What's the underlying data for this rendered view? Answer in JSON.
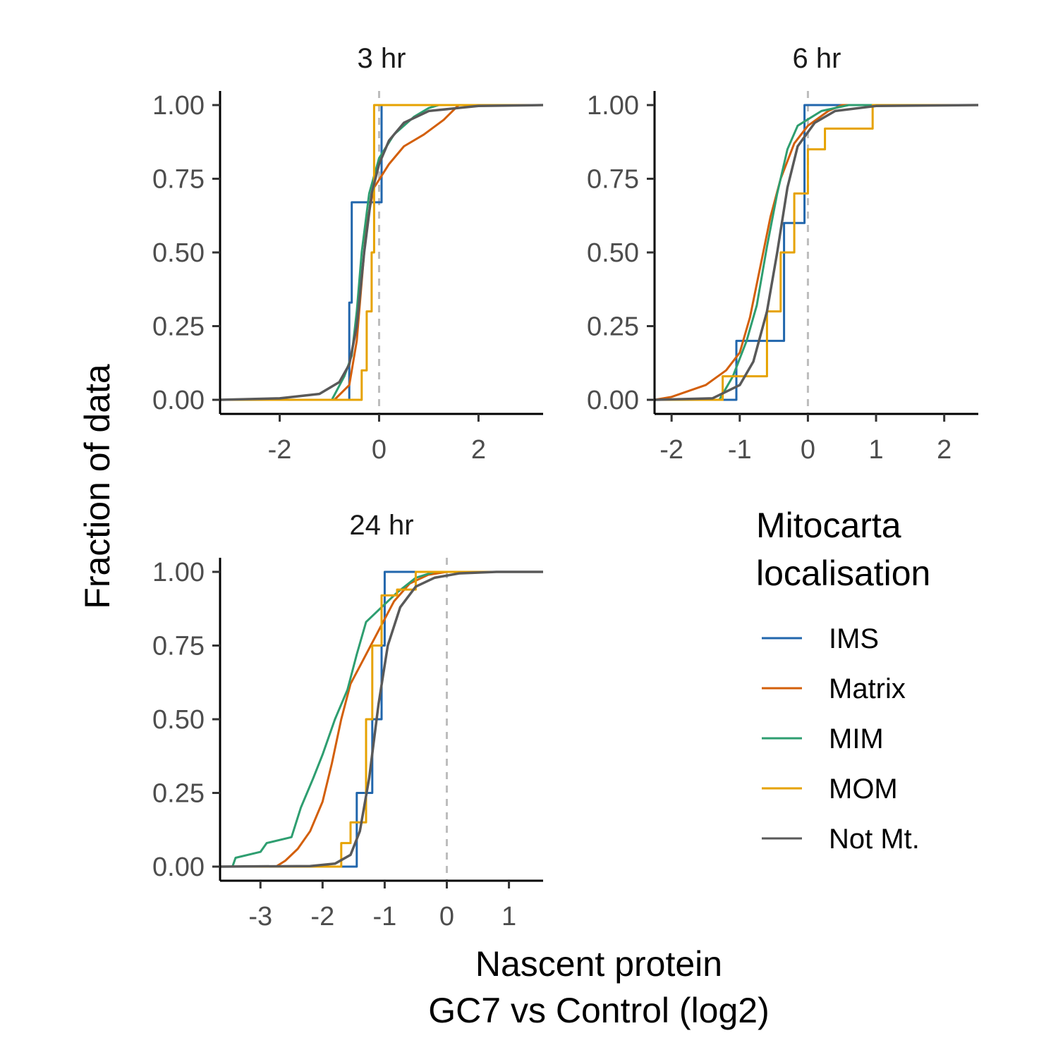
{
  "chart_data": {
    "type": "line",
    "ylabel": "Fraction of data",
    "xlabel_lines": [
      "Nascent protein",
      "GC7 vs Control (log2)"
    ],
    "legend": {
      "title_lines": [
        "Mitocarta",
        "localisation"
      ],
      "placement": "right",
      "entries": [
        {
          "name": "IMS",
          "color": "#2166ac"
        },
        {
          "name": "Matrix",
          "color": "#d35f0a"
        },
        {
          "name": "MIM",
          "color": "#2e9e70"
        },
        {
          "name": "MOM",
          "color": "#e6a200"
        },
        {
          "name": "Not Mt.",
          "color": "#595959"
        }
      ]
    },
    "reference_line_x": 0,
    "yticks": [
      "0.00",
      "0.25",
      "0.50",
      "0.75",
      "1.00"
    ],
    "ylim": [
      0,
      1
    ],
    "panels": [
      {
        "title": "3 hr",
        "xlim": [
          -3.2,
          3.3
        ],
        "xticks": [
          {
            "v": -2,
            "label": "-2"
          },
          {
            "v": 0,
            "label": "0"
          },
          {
            "v": 2,
            "label": "2"
          }
        ],
        "series": [
          {
            "name": "IMS",
            "type": "step",
            "points": [
              [
                -3.2,
                0
              ],
              [
                -0.6,
                0
              ],
              [
                -0.6,
                0.33
              ],
              [
                -0.55,
                0.33
              ],
              [
                -0.55,
                0.67
              ],
              [
                0.05,
                0.67
              ],
              [
                0.05,
                1
              ],
              [
                3.3,
                1
              ]
            ]
          },
          {
            "name": "Matrix",
            "type": "ecdf",
            "points": [
              [
                -3.2,
                0
              ],
              [
                -0.9,
                0
              ],
              [
                -0.6,
                0.05
              ],
              [
                -0.45,
                0.2
              ],
              [
                -0.35,
                0.4
              ],
              [
                -0.25,
                0.6
              ],
              [
                -0.1,
                0.72
              ],
              [
                0.2,
                0.8
              ],
              [
                0.5,
                0.86
              ],
              [
                0.9,
                0.9
              ],
              [
                1.3,
                0.95
              ],
              [
                1.6,
                1.0
              ],
              [
                3.3,
                1
              ]
            ]
          },
          {
            "name": "MIM",
            "type": "ecdf",
            "points": [
              [
                -3.2,
                0
              ],
              [
                -0.95,
                0
              ],
              [
                -0.7,
                0.08
              ],
              [
                -0.55,
                0.15
              ],
              [
                -0.45,
                0.3
              ],
              [
                -0.35,
                0.5
              ],
              [
                -0.2,
                0.7
              ],
              [
                0.0,
                0.82
              ],
              [
                0.3,
                0.9
              ],
              [
                0.7,
                0.96
              ],
              [
                1.0,
                0.99
              ],
              [
                1.2,
                1.0
              ],
              [
                3.3,
                1
              ]
            ]
          },
          {
            "name": "MOM",
            "type": "step",
            "points": [
              [
                -3.2,
                0
              ],
              [
                -0.35,
                0
              ],
              [
                -0.35,
                0.1
              ],
              [
                -0.25,
                0.1
              ],
              [
                -0.25,
                0.3
              ],
              [
                -0.15,
                0.3
              ],
              [
                -0.15,
                0.5
              ],
              [
                -0.1,
                0.5
              ],
              [
                -0.1,
                1.0
              ],
              [
                3.3,
                1
              ]
            ]
          },
          {
            "name": "Not Mt.",
            "type": "ecdf",
            "points": [
              [
                -3.2,
                0
              ],
              [
                -2.0,
                0.005
              ],
              [
                -1.2,
                0.02
              ],
              [
                -0.8,
                0.06
              ],
              [
                -0.6,
                0.12
              ],
              [
                -0.45,
                0.25
              ],
              [
                -0.3,
                0.5
              ],
              [
                -0.15,
                0.7
              ],
              [
                0.0,
                0.8
              ],
              [
                0.2,
                0.88
              ],
              [
                0.5,
                0.94
              ],
              [
                1.0,
                0.98
              ],
              [
                2.0,
                0.997
              ],
              [
                3.3,
                1
              ]
            ]
          }
        ]
      },
      {
        "title": "6 hr",
        "xlim": [
          -2.25,
          2.5
        ],
        "xticks": [
          {
            "v": -2,
            "label": "-2"
          },
          {
            "v": -1,
            "label": "-1"
          },
          {
            "v": 0,
            "label": "0"
          },
          {
            "v": 1,
            "label": "1"
          },
          {
            "v": 2,
            "label": "2"
          }
        ],
        "series": [
          {
            "name": "IMS",
            "type": "step",
            "points": [
              [
                -2.25,
                0
              ],
              [
                -1.05,
                0
              ],
              [
                -1.05,
                0.2
              ],
              [
                -0.35,
                0.2
              ],
              [
                -0.35,
                0.6
              ],
              [
                -0.05,
                0.6
              ],
              [
                -0.05,
                1.0
              ],
              [
                2.5,
                1
              ]
            ]
          },
          {
            "name": "Matrix",
            "type": "ecdf",
            "points": [
              [
                -2.25,
                0
              ],
              [
                -2.0,
                0.01
              ],
              [
                -1.5,
                0.05
              ],
              [
                -1.2,
                0.1
              ],
              [
                -1.0,
                0.16
              ],
              [
                -0.85,
                0.28
              ],
              [
                -0.7,
                0.45
              ],
              [
                -0.55,
                0.62
              ],
              [
                -0.4,
                0.75
              ],
              [
                -0.2,
                0.87
              ],
              [
                0.0,
                0.93
              ],
              [
                0.3,
                0.98
              ],
              [
                0.5,
                1.0
              ],
              [
                2.5,
                1
              ]
            ]
          },
          {
            "name": "MIM",
            "type": "ecdf",
            "points": [
              [
                -2.25,
                0
              ],
              [
                -1.3,
                0
              ],
              [
                -1.1,
                0.08
              ],
              [
                -0.9,
                0.2
              ],
              [
                -0.75,
                0.32
              ],
              [
                -0.6,
                0.52
              ],
              [
                -0.45,
                0.7
              ],
              [
                -0.3,
                0.85
              ],
              [
                -0.15,
                0.93
              ],
              [
                0.2,
                0.98
              ],
              [
                0.6,
                1.0
              ],
              [
                2.5,
                1
              ]
            ]
          },
          {
            "name": "MOM",
            "type": "step",
            "points": [
              [
                -2.25,
                0
              ],
              [
                -1.25,
                0
              ],
              [
                -1.25,
                0.08
              ],
              [
                -0.6,
                0.08
              ],
              [
                -0.6,
                0.3
              ],
              [
                -0.4,
                0.3
              ],
              [
                -0.4,
                0.5
              ],
              [
                -0.2,
                0.5
              ],
              [
                -0.2,
                0.7
              ],
              [
                0.0,
                0.7
              ],
              [
                0.0,
                0.85
              ],
              [
                0.25,
                0.85
              ],
              [
                0.25,
                0.92
              ],
              [
                0.95,
                0.92
              ],
              [
                0.95,
                1.0
              ],
              [
                2.5,
                1
              ]
            ]
          },
          {
            "name": "Not Mt.",
            "type": "ecdf",
            "points": [
              [
                -2.25,
                0
              ],
              [
                -1.4,
                0.005
              ],
              [
                -1.0,
                0.05
              ],
              [
                -0.8,
                0.13
              ],
              [
                -0.6,
                0.3
              ],
              [
                -0.45,
                0.5
              ],
              [
                -0.3,
                0.72
              ],
              [
                -0.15,
                0.86
              ],
              [
                0.1,
                0.94
              ],
              [
                0.4,
                0.98
              ],
              [
                1.0,
                0.997
              ],
              [
                2.5,
                1
              ]
            ]
          }
        ]
      },
      {
        "title": "24 hr",
        "xlim": [
          -3.65,
          1.55
        ],
        "xticks": [
          {
            "v": -3,
            "label": "-3"
          },
          {
            "v": -2,
            "label": "-2"
          },
          {
            "v": -1,
            "label": "-1"
          },
          {
            "v": 0,
            "label": "0"
          },
          {
            "v": 1,
            "label": "1"
          }
        ],
        "series": [
          {
            "name": "IMS",
            "type": "step",
            "points": [
              [
                -3.65,
                0
              ],
              [
                -1.45,
                0
              ],
              [
                -1.45,
                0.25
              ],
              [
                -1.2,
                0.25
              ],
              [
                -1.2,
                0.5
              ],
              [
                -1.05,
                0.5
              ],
              [
                -1.05,
                0.75
              ],
              [
                -1.0,
                0.75
              ],
              [
                -1.0,
                1.0
              ],
              [
                1.55,
                1
              ]
            ]
          },
          {
            "name": "Matrix",
            "type": "ecdf",
            "points": [
              [
                -3.65,
                0
              ],
              [
                -2.75,
                0
              ],
              [
                -2.6,
                0.02
              ],
              [
                -2.4,
                0.06
              ],
              [
                -2.2,
                0.12
              ],
              [
                -2.0,
                0.22
              ],
              [
                -1.85,
                0.35
              ],
              [
                -1.7,
                0.5
              ],
              [
                -1.55,
                0.62
              ],
              [
                -1.4,
                0.68
              ],
              [
                -1.25,
                0.74
              ],
              [
                -1.05,
                0.82
              ],
              [
                -0.85,
                0.9
              ],
              [
                -0.6,
                0.96
              ],
              [
                -0.3,
                0.99
              ],
              [
                0.0,
                1.0
              ],
              [
                1.55,
                1
              ]
            ]
          },
          {
            "name": "MIM",
            "type": "ecdf",
            "points": [
              [
                -3.65,
                0
              ],
              [
                -3.45,
                0
              ],
              [
                -3.4,
                0.03
              ],
              [
                -3.0,
                0.05
              ],
              [
                -2.9,
                0.08
              ],
              [
                -2.5,
                0.1
              ],
              [
                -2.35,
                0.2
              ],
              [
                -2.15,
                0.3
              ],
              [
                -2.0,
                0.38
              ],
              [
                -1.8,
                0.5
              ],
              [
                -1.6,
                0.6
              ],
              [
                -1.45,
                0.72
              ],
              [
                -1.3,
                0.83
              ],
              [
                -1.1,
                0.87
              ],
              [
                -0.8,
                0.93
              ],
              [
                -0.5,
                0.98
              ],
              [
                -0.2,
                1.0
              ],
              [
                1.55,
                1
              ]
            ]
          },
          {
            "name": "MOM",
            "type": "step",
            "points": [
              [
                -3.65,
                0
              ],
              [
                -1.7,
                0
              ],
              [
                -1.7,
                0.08
              ],
              [
                -1.55,
                0.08
              ],
              [
                -1.55,
                0.15
              ],
              [
                -1.3,
                0.15
              ],
              [
                -1.3,
                0.5
              ],
              [
                -1.2,
                0.5
              ],
              [
                -1.2,
                0.75
              ],
              [
                -1.05,
                0.75
              ],
              [
                -1.05,
                0.92
              ],
              [
                -0.8,
                0.92
              ],
              [
                -0.8,
                0.94
              ],
              [
                -0.5,
                0.94
              ],
              [
                -0.5,
                1.0
              ],
              [
                1.55,
                1
              ]
            ]
          },
          {
            "name": "Not Mt.",
            "type": "ecdf",
            "points": [
              [
                -3.65,
                0
              ],
              [
                -2.2,
                0.002
              ],
              [
                -1.8,
                0.01
              ],
              [
                -1.55,
                0.04
              ],
              [
                -1.4,
                0.12
              ],
              [
                -1.25,
                0.3
              ],
              [
                -1.1,
                0.55
              ],
              [
                -0.95,
                0.75
              ],
              [
                -0.75,
                0.88
              ],
              [
                -0.5,
                0.95
              ],
              [
                -0.2,
                0.98
              ],
              [
                0.2,
                0.995
              ],
              [
                0.8,
                1.0
              ],
              [
                1.55,
                1
              ]
            ]
          }
        ]
      }
    ]
  }
}
